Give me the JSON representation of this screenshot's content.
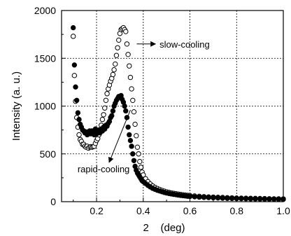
{
  "chart_data": {
    "type": "scatter",
    "xlabel": "2    (deg)",
    "ylabel": "Intensity (a. u.)",
    "xlim": [
      0.05,
      1.0
    ],
    "ylim": [
      0,
      2000
    ],
    "grid": true,
    "x_ticks": [
      {
        "value": 0.2,
        "label": "0.2"
      },
      {
        "value": 0.4,
        "label": "0.4"
      },
      {
        "value": 0.6,
        "label": "0.6"
      },
      {
        "value": 0.8,
        "label": "0.8"
      },
      {
        "value": 1.0,
        "label": "1.0"
      }
    ],
    "y_ticks": [
      {
        "value": 0,
        "label": "0"
      },
      {
        "value": 500,
        "label": "500"
      },
      {
        "value": 1000,
        "label": "1000"
      },
      {
        "value": 1500,
        "label": "1500"
      },
      {
        "value": 2000,
        "label": "2000"
      }
    ],
    "annotations": [
      {
        "text": "slow-cooling",
        "series_index": 0,
        "anchor_x": 0.36,
        "anchor_y": 1650,
        "text_x": 0.47,
        "text_y": 1650
      },
      {
        "text": "rapid-cooling",
        "series_index": 1,
        "anchor_x": 0.345,
        "anchor_y": 960,
        "text_x": 0.23,
        "text_y": 280
      }
    ],
    "series": [
      {
        "marker": "open-circle",
        "x": [
          0.1,
          0.105,
          0.11,
          0.115,
          0.12,
          0.125,
          0.13,
          0.135,
          0.14,
          0.145,
          0.15,
          0.155,
          0.16,
          0.165,
          0.17,
          0.175,
          0.18,
          0.185,
          0.19,
          0.195,
          0.2,
          0.205,
          0.21,
          0.215,
          0.22,
          0.225,
          0.23,
          0.235,
          0.24,
          0.245,
          0.25,
          0.255,
          0.26,
          0.265,
          0.27,
          0.275,
          0.28,
          0.285,
          0.29,
          0.295,
          0.3,
          0.305,
          0.31,
          0.315,
          0.32,
          0.325,
          0.33,
          0.335,
          0.34,
          0.345,
          0.35,
          0.355,
          0.36,
          0.365,
          0.37,
          0.375,
          0.38,
          0.385,
          0.39,
          0.395,
          0.4,
          0.41,
          0.42,
          0.43,
          0.44,
          0.45,
          0.46,
          0.47,
          0.48,
          0.49,
          0.5,
          0.51,
          0.52,
          0.53,
          0.54,
          0.55,
          0.56,
          0.57,
          0.58,
          0.59,
          0.6,
          0.62,
          0.64,
          0.66,
          0.68,
          0.7,
          0.72,
          0.74,
          0.76,
          0.78,
          0.8,
          0.82,
          0.84,
          0.86,
          0.88,
          0.9,
          0.92,
          0.94,
          0.96,
          0.98,
          1.0
        ],
        "y": [
          1730,
          1320,
          1050,
          880,
          780,
          700,
          650,
          630,
          600,
          600,
          580,
          570,
          580,
          560,
          570,
          575,
          570,
          575,
          580,
          610,
          640,
          660,
          700,
          750,
          800,
          860,
          910,
          980,
          1060,
          1130,
          1180,
          1220,
          1260,
          1290,
          1330,
          1380,
          1440,
          1530,
          1610,
          1690,
          1760,
          1800,
          1810,
          1820,
          1800,
          1780,
          1650,
          1540,
          1420,
          1300,
          1180,
          1060,
          940,
          810,
          690,
          570,
          500,
          420,
          360,
          310,
          280,
          240,
          210,
          185,
          165,
          150,
          138,
          128,
          118,
          110,
          103,
          97,
          92,
          87,
          83,
          79,
          75,
          72,
          69,
          66,
          64,
          60,
          56,
          53,
          50,
          48,
          46,
          44,
          42,
          40,
          38,
          37,
          36,
          35,
          34,
          33,
          32,
          31,
          30,
          30,
          29
        ]
      },
      {
        "marker": "filled-circle",
        "x": [
          0.1,
          0.105,
          0.11,
          0.115,
          0.12,
          0.125,
          0.13,
          0.135,
          0.14,
          0.145,
          0.15,
          0.155,
          0.16,
          0.165,
          0.17,
          0.175,
          0.18,
          0.185,
          0.19,
          0.195,
          0.2,
          0.205,
          0.21,
          0.215,
          0.22,
          0.225,
          0.23,
          0.235,
          0.24,
          0.245,
          0.25,
          0.255,
          0.26,
          0.265,
          0.27,
          0.275,
          0.28,
          0.285,
          0.29,
          0.295,
          0.3,
          0.305,
          0.31,
          0.315,
          0.32,
          0.325,
          0.33,
          0.335,
          0.34,
          0.345,
          0.35,
          0.355,
          0.36,
          0.365,
          0.37,
          0.375,
          0.38,
          0.385,
          0.39,
          0.395,
          0.4,
          0.41,
          0.42,
          0.43,
          0.44,
          0.45,
          0.46,
          0.47,
          0.48,
          0.49,
          0.5,
          0.51,
          0.52,
          0.53,
          0.54,
          0.55,
          0.56,
          0.57,
          0.58,
          0.59,
          0.6,
          0.62,
          0.64,
          0.66,
          0.68,
          0.7,
          0.72,
          0.74,
          0.76,
          0.78,
          0.8,
          0.82,
          0.84,
          0.86,
          0.88,
          0.9,
          0.92,
          0.94,
          0.96,
          0.98,
          1.0
        ],
        "y": [
          1820,
          1430,
          1200,
          1060,
          930,
          860,
          810,
          780,
          750,
          740,
          720,
          730,
          700,
          720,
          740,
          710,
          740,
          720,
          700,
          760,
          710,
          730,
          750,
          720,
          760,
          740,
          780,
          760,
          800,
          790,
          820,
          840,
          880,
          900,
          950,
          1000,
          1030,
          1060,
          1080,
          1100,
          1090,
          1110,
          1070,
          1040,
          1000,
          950,
          880,
          780,
          700,
          640,
          580,
          500,
          430,
          370,
          330,
          300,
          280,
          260,
          240,
          220,
          210,
          190,
          170,
          155,
          140,
          130,
          120,
          112,
          104,
          97,
          91,
          86,
          81,
          77,
          73,
          69,
          66,
          63,
          60,
          57,
          55,
          51,
          48,
          45,
          43,
          41,
          39,
          37,
          35,
          34,
          33,
          32,
          31,
          30,
          29,
          28,
          27,
          27,
          26,
          26,
          25
        ]
      }
    ]
  }
}
